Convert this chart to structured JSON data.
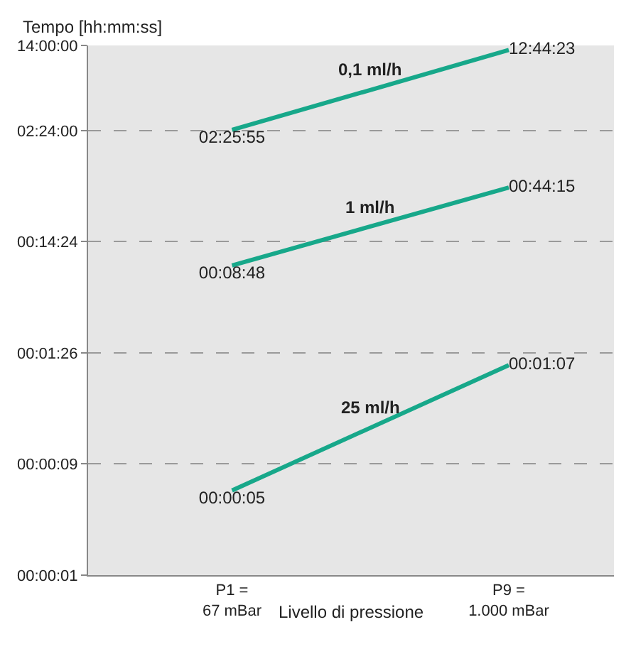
{
  "chart_data": {
    "type": "line",
    "ylabel": "Tempo [hh:mm:ss]",
    "xlabel": "Livello di pressione",
    "categories": [
      "P1 =\n67 mBar",
      "P9 =\n1.000 mBar"
    ],
    "series": [
      {
        "name": "0,1 ml/h",
        "color": "#17a88a",
        "values": [
          8755,
          45863
        ],
        "value_labels": [
          "02:25:55",
          "12:44:23"
        ]
      },
      {
        "name": "1 ml/h",
        "color": "#17a88a",
        "values": [
          528,
          2655
        ],
        "value_labels": [
          "00:08:48",
          "00:44:15"
        ]
      },
      {
        "name": "25 ml/h",
        "color": "#17a88a",
        "values": [
          5,
          67
        ],
        "value_labels": [
          "00:00:05",
          "00:01:07"
        ]
      }
    ],
    "log": true,
    "ylim": [
      0.864,
      50400
    ],
    "yticks": [
      {
        "value": 0.864,
        "label": "00:00:01"
      },
      {
        "value": 8.64,
        "label": "00:00:09"
      },
      {
        "value": 86.4,
        "label": "00:01:26"
      },
      {
        "value": 864,
        "label": "00:14:24"
      },
      {
        "value": 8640,
        "label": "02:24:00"
      },
      {
        "value": 50400,
        "label": "14:00:00"
      }
    ],
    "grid": "y",
    "legend": false,
    "marker": "none",
    "line_style": "solid"
  }
}
